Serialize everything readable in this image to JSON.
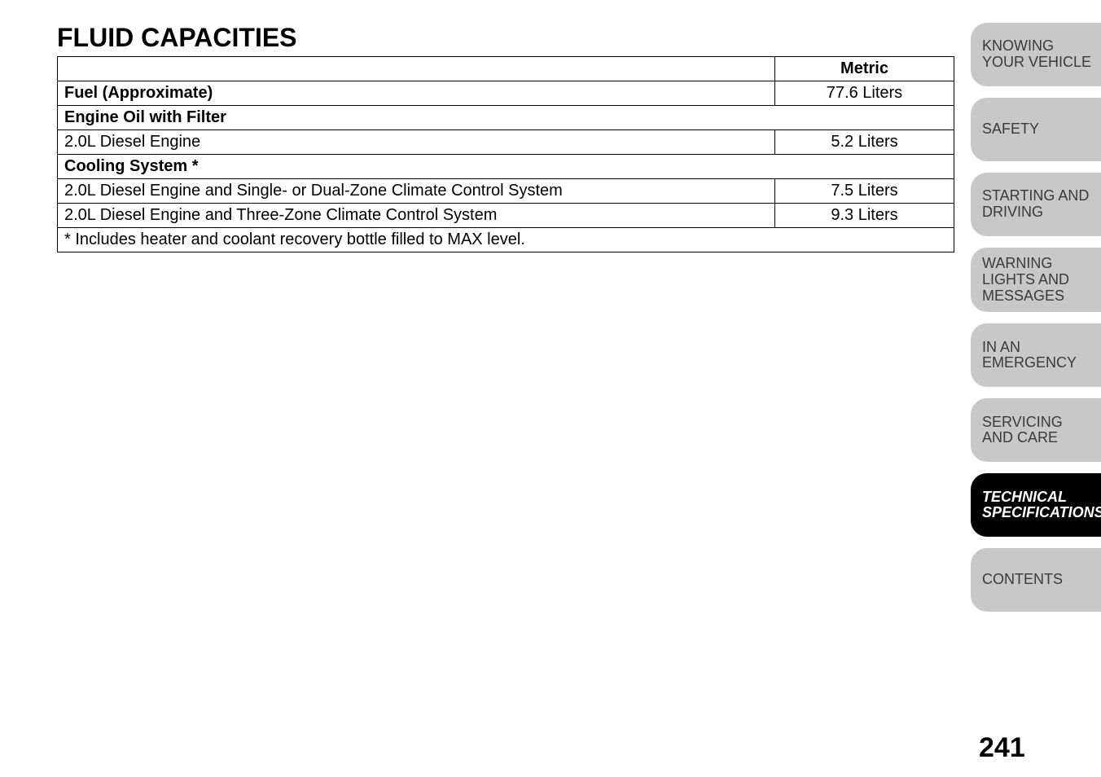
{
  "title": "FLUID CAPACITIES",
  "table": {
    "header_metric": "Metric",
    "rows": [
      {
        "label": "Fuel (Approximate)",
        "bold": true,
        "value": "77.6 Liters"
      },
      {
        "label": "Engine Oil with Filter",
        "bold": true,
        "value": ""
      },
      {
        "label": "2.0L Diesel Engine",
        "bold": false,
        "value": "5.2 Liters"
      },
      {
        "label": "Cooling System *",
        "bold": true,
        "value": ""
      },
      {
        "label": "2.0L Diesel Engine and Single- or Dual-Zone Climate Control System",
        "bold": false,
        "value": "7.5 Liters"
      },
      {
        "label": "2.0L Diesel Engine and Three-Zone Climate Control System",
        "bold": false,
        "value": "9.3 Liters"
      }
    ],
    "footnote": "* Includes heater and coolant recovery bottle filled to MAX level."
  },
  "tabs": [
    {
      "label": "KNOWING YOUR VEHICLE",
      "active": false
    },
    {
      "label": "SAFETY",
      "active": false
    },
    {
      "label": "STARTING AND DRIVING",
      "active": false
    },
    {
      "label": "WARNING LIGHTS AND MESSAGES",
      "active": false
    },
    {
      "label": "IN AN EMERGENCY",
      "active": false
    },
    {
      "label": "SERVICING AND CARE",
      "active": false
    },
    {
      "label": "TECHNICAL SPECIFICATIONS",
      "active": true
    },
    {
      "label": "CONTENTS",
      "active": false
    }
  ],
  "page_number": "241",
  "colors": {
    "tab_bg": "#c8c8c8",
    "tab_fg": "#3a3a3a",
    "tab_active_bg": "#000000",
    "tab_active_fg": "#ffffff",
    "border": "#000000",
    "page_bg": "#ffffff"
  },
  "fonts": {
    "title_size_pt": 24,
    "body_size_pt": 15,
    "tab_size_pt": 14,
    "page_num_size_pt": 26
  }
}
